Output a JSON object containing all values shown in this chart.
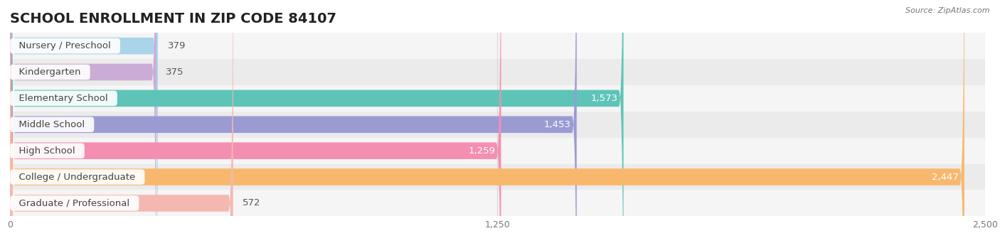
{
  "title": "SCHOOL ENROLLMENT IN ZIP CODE 84107",
  "source": "Source: ZipAtlas.com",
  "categories": [
    "Nursery / Preschool",
    "Kindergarten",
    "Elementary School",
    "Middle School",
    "High School",
    "College / Undergraduate",
    "Graduate / Professional"
  ],
  "values": [
    379,
    375,
    1573,
    1453,
    1259,
    2447,
    572
  ],
  "bar_colors": [
    "#aad4ea",
    "#cbacd6",
    "#5ec4b8",
    "#9b9bd4",
    "#f48fb1",
    "#f7b86e",
    "#f4b8b0"
  ],
  "xlim": [
    0,
    2500
  ],
  "xticks": [
    0,
    1250,
    2500
  ],
  "title_fontsize": 14,
  "label_fontsize": 9.5,
  "value_fontsize": 9.5,
  "background_color": "#ffffff",
  "row_bg_even": "#f5f5f5",
  "row_bg_odd": "#ebebeb",
  "grid_color": "#d8d8d8",
  "value_inside_color": "#ffffff",
  "value_outside_color": "#555555",
  "label_text_color": "#444444",
  "inside_threshold": 600,
  "bar_height": 0.64,
  "rounding_size": 12
}
